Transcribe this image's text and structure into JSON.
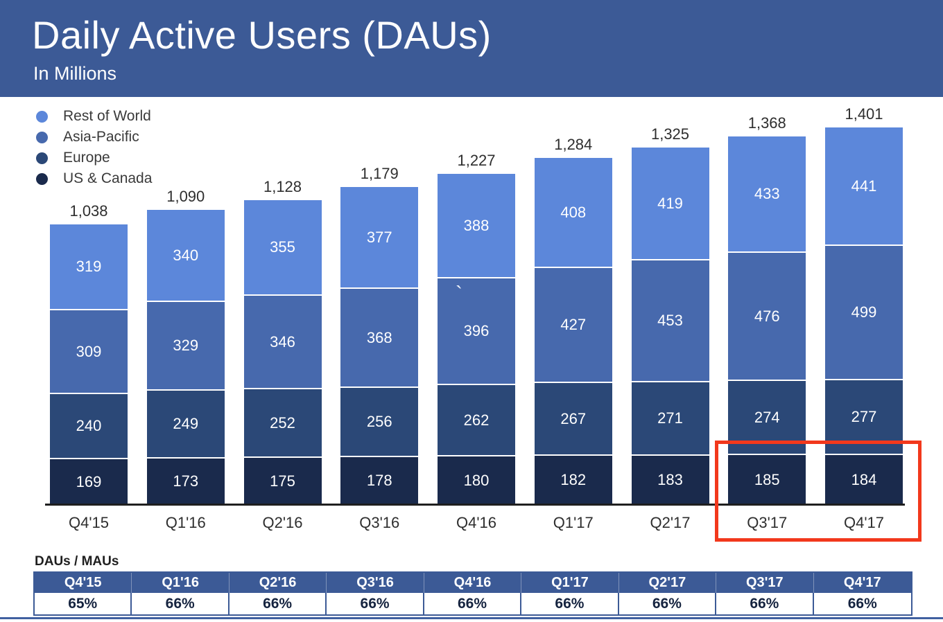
{
  "header": {
    "title": "Daily Active Users (DAUs)",
    "subtitle": "In Millions"
  },
  "chart_data": {
    "type": "bar",
    "stacked": true,
    "title": "Daily Active Users (DAUs)",
    "subtitle": "In Millions",
    "categories": [
      "Q4'15",
      "Q1'16",
      "Q2'16",
      "Q3'16",
      "Q4'16",
      "Q1'17",
      "Q2'17",
      "Q3'17",
      "Q4'17"
    ],
    "series": [
      {
        "name": "Rest of World",
        "color": "#5c87da",
        "values": [
          319,
          340,
          355,
          377,
          388,
          408,
          419,
          433,
          441
        ]
      },
      {
        "name": "Asia-Pacific",
        "color": "#4769ad",
        "values": [
          309,
          329,
          346,
          368,
          396,
          427,
          453,
          476,
          499
        ]
      },
      {
        "name": "Europe",
        "color": "#2b4877",
        "values": [
          240,
          249,
          252,
          256,
          262,
          267,
          271,
          274,
          277
        ]
      },
      {
        "name": "US & Canada",
        "color": "#1a2a4c",
        "values": [
          169,
          173,
          175,
          178,
          180,
          182,
          183,
          185,
          184
        ]
      }
    ],
    "totals": [
      1038,
      1090,
      1128,
      1179,
      1227,
      1284,
      1325,
      1368,
      1401
    ],
    "ylim": [
      0,
      1401
    ],
    "grid": false,
    "legend_position": "top-left",
    "stray_mark": {
      "text": "`",
      "column": "Q4'16",
      "series": "Asia-Pacific"
    },
    "highlight": {
      "columns": [
        "Q3'17",
        "Q4'17"
      ],
      "color": "#f2381c"
    }
  },
  "ratio_table": {
    "label": "DAUs / MAUs",
    "columns": [
      "Q4'15",
      "Q1'16",
      "Q2'16",
      "Q3'16",
      "Q4'16",
      "Q1'17",
      "Q2'17",
      "Q3'17",
      "Q4'17"
    ],
    "values": [
      "65%",
      "66%",
      "66%",
      "66%",
      "66%",
      "66%",
      "66%",
      "66%",
      "66%"
    ]
  },
  "colors": {
    "header_band": "#3c5a96",
    "axis": "#1f1f1f",
    "label_text": "#2e2e2e",
    "bar_value_text": "#ffffff",
    "highlight": "#f2381c",
    "table_border": "#3c5a96",
    "bottom_rule": "#4060a0"
  }
}
